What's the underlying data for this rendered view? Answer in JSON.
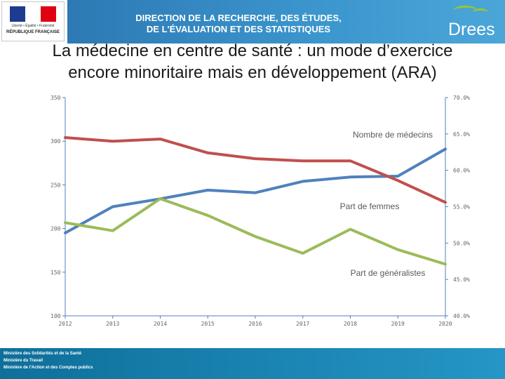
{
  "header": {
    "logo": {
      "motto": "Liberté • Égalité • Fraternité",
      "republic": "RÉPUBLIQUE FRANÇAISE"
    },
    "banner_line1": "DIRECTION DE LA RECHERCHE, DES ÉTUDES,",
    "banner_line2": "DE L'ÉVALUATION ET DES STATISTIQUES",
    "brand": "Drees",
    "banner_color": "#3d97cf",
    "accent_color": "#9bc531"
  },
  "slide": {
    "title_line1": "La médecine en centre de santé : un mode d’exercice",
    "title_line2": "encore minoritaire mais en développement (ARA)"
  },
  "chart_data": {
    "type": "line",
    "title": "La médecine en centre de santé : un mode d’exercice encore minoritaire mais en développement (ARA)",
    "categories": [
      "2012",
      "2013",
      "2014",
      "2015",
      "2016",
      "2017",
      "2018",
      "2019",
      "2020"
    ],
    "left_axis": {
      "ylim": [
        100,
        350
      ],
      "ticks": [
        "100",
        "150",
        "200",
        "250",
        "300",
        "350"
      ]
    },
    "right_axis": {
      "ylim": [
        40,
        70
      ],
      "ticks": [
        "40.0%",
        "45.0%",
        "50.0%",
        "55.0%",
        "60.0%",
        "65.0%",
        "70.0%"
      ]
    },
    "grid": false,
    "series": [
      {
        "name": "Nombre de médecins",
        "axis": "left",
        "color": "#4f81bd",
        "values": [
          195,
          225,
          234,
          244,
          241,
          254,
          259,
          260,
          291
        ]
      },
      {
        "name": "Part de femmes",
        "axis": "right",
        "color": "#c0504d",
        "values": [
          64.5,
          64.0,
          64.3,
          62.4,
          61.6,
          61.3,
          61.3,
          58.6,
          55.6
        ]
      },
      {
        "name": "Part de généralistes",
        "axis": "right",
        "color": "#9bbb59",
        "values": [
          52.8,
          51.7,
          56.1,
          53.8,
          50.9,
          48.6,
          51.9,
          49.1,
          47.1
        ]
      }
    ],
    "annotations": [
      {
        "series": 0,
        "text": "Nombre de médecins"
      },
      {
        "series": 1,
        "text": "Part de femmes"
      },
      {
        "series": 2,
        "text": "Part de généralistes"
      }
    ]
  },
  "footer": {
    "line1": "Ministère des Solidarités et de la Santé",
    "line2": "Ministère du Travail",
    "line3": "Ministère de l'Action et des Comptes publics"
  }
}
